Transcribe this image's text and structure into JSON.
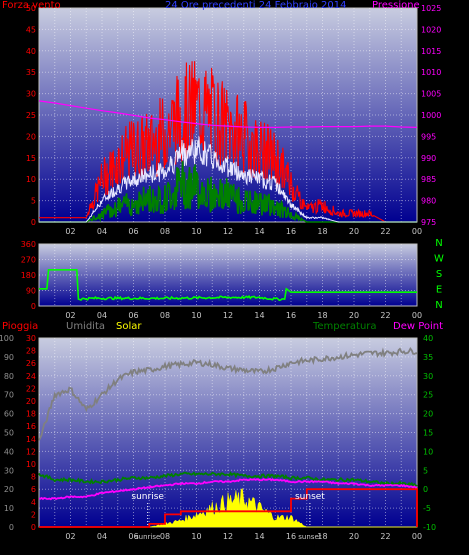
{
  "header": {
    "left": "Forza vento",
    "center": "24 Ore precedenti  24 Febbraio 2014",
    "right": "Pressione"
  },
  "colors": {
    "wind_gust": "#ff0000",
    "wind_avg": "#e8e8ff",
    "wind_low": "#008000",
    "pressure": "#ff00ff",
    "direction": "#00ff00",
    "rain": "#ff0000",
    "humidity": "#808080",
    "solar": "#ffff00",
    "temperature": "#008000",
    "dewpoint": "#ff00ff",
    "plot_top": "#c8cce0",
    "plot_bottom": "#000090"
  },
  "x_ticks": [
    "02",
    "04",
    "06",
    "08",
    "10",
    "12",
    "14",
    "16",
    "18",
    "20",
    "22",
    "00"
  ],
  "sun_labels": {
    "sunrise": "sunrise",
    "sunset": "sunset"
  },
  "chart_data": [
    {
      "type": "line",
      "name": "wind-pressure",
      "title": "24 Ore precedenti  24 Febbraio 2014",
      "ylabel": "Forza vento",
      "y2label": "Pressione",
      "ylim": [
        0,
        50
      ],
      "y2lim": [
        975,
        1025
      ],
      "yticks": [
        0,
        5,
        10,
        15,
        20,
        25,
        30,
        35,
        40,
        45,
        50
      ],
      "y2ticks": [
        975,
        980,
        985,
        990,
        995,
        1000,
        1005,
        1010,
        1015,
        1020,
        1025
      ],
      "x_hours": [
        0,
        1,
        2,
        3,
        4,
        5,
        6,
        7,
        8,
        9,
        10,
        11,
        12,
        13,
        14,
        15,
        16,
        17,
        18,
        19,
        20,
        21,
        22,
        23,
        24
      ],
      "series": [
        {
          "name": "Raffica",
          "values": [
            1,
            1,
            1,
            1,
            10,
            14,
            17,
            18,
            21,
            25,
            27,
            25,
            22,
            20,
            17,
            15,
            9,
            3,
            4,
            2,
            2,
            2,
            0,
            0,
            0
          ]
        },
        {
          "name": "Media",
          "values": [
            0,
            0,
            0,
            0,
            5,
            8,
            10,
            11,
            12,
            16,
            17,
            15,
            13,
            11,
            10,
            9,
            4,
            1,
            1,
            0,
            0,
            0,
            0,
            0,
            0
          ]
        },
        {
          "name": "Min",
          "values": [
            0,
            0,
            0,
            0,
            2,
            4,
            5,
            6,
            6,
            10,
            9,
            7,
            7,
            5,
            5,
            4,
            2,
            0,
            0,
            0,
            0,
            0,
            0,
            0,
            0
          ]
        },
        {
          "name": "Pressione",
          "values": [
            1003.3,
            1002.8,
            1002.2,
            1001.6,
            1001.0,
            1000.5,
            999.9,
            999.3,
            998.9,
            998.4,
            998.0,
            997.6,
            997.4,
            997.2,
            997.1,
            997.1,
            997.2,
            997.2,
            997.3,
            997.3,
            997.3,
            997.4,
            997.4,
            997.2,
            997.1
          ]
        }
      ]
    },
    {
      "type": "line",
      "name": "wind-direction",
      "ylim": [
        0,
        360
      ],
      "yticks": [
        0,
        90,
        180,
        270,
        360
      ],
      "compass": [
        "N",
        "W",
        "S",
        "E",
        "N"
      ],
      "points": [
        [
          0,
          100
        ],
        [
          0.5,
          100
        ],
        [
          0.6,
          210
        ],
        [
          2.4,
          210
        ],
        [
          2.5,
          40
        ],
        [
          3.5,
          45
        ],
        [
          8,
          45
        ],
        [
          12,
          50
        ],
        [
          14,
          50
        ],
        [
          15,
          40
        ],
        [
          15.6,
          40
        ],
        [
          15.7,
          100
        ],
        [
          16,
          80
        ],
        [
          24,
          80
        ]
      ]
    },
    {
      "type": "line",
      "name": "weather",
      "legend": [
        "Pioggia",
        "Umidita",
        "Solar",
        "Temperatura",
        "Dew Point"
      ],
      "y_left_hum": [
        0,
        10,
        20,
        30,
        40,
        50,
        60,
        70,
        80,
        90,
        100
      ],
      "y_left_rain": [
        0,
        2,
        4,
        6,
        8,
        10,
        12,
        14,
        16,
        18,
        20,
        22,
        24,
        26,
        28,
        30
      ],
      "y_right_temp": [
        -10,
        -5,
        0,
        5,
        10,
        15,
        20,
        25,
        30,
        35,
        40
      ],
      "sunrise_hour": 6.9,
      "sunset_hour": 17.2,
      "x_hours": [
        0,
        1,
        2,
        3,
        4,
        5,
        6,
        7,
        8,
        9,
        10,
        11,
        12,
        13,
        14,
        15,
        16,
        17,
        18,
        19,
        20,
        21,
        22,
        23,
        24
      ],
      "series": [
        {
          "name": "Umidita",
          "values": [
            45,
            70,
            73,
            62,
            70,
            78,
            82,
            83,
            85,
            86,
            87,
            86,
            84,
            83,
            82,
            84,
            87,
            88,
            89,
            90,
            91,
            92,
            92,
            93,
            93
          ]
        },
        {
          "name": "Temperatura",
          "values": [
            4,
            2.5,
            2.5,
            2,
            2,
            2.5,
            3,
            3,
            3.5,
            4,
            4,
            4,
            4,
            3.5,
            3.5,
            3.5,
            3,
            3,
            2.5,
            2.5,
            2.5,
            2,
            1.5,
            1.5,
            1
          ]
        },
        {
          "name": "Dew Point",
          "values": [
            -2.5,
            -2.5,
            -2,
            -2,
            -1,
            -0.5,
            0,
            0.5,
            1,
            1.5,
            1.5,
            2,
            2,
            2.5,
            2.5,
            2.5,
            2,
            2,
            2,
            1.5,
            1.5,
            1,
            1,
            1,
            0.5
          ]
        },
        {
          "name": "Pioggia",
          "values": [
            0,
            0,
            0,
            0,
            0,
            0,
            0,
            0.5,
            2,
            2.5,
            2.5,
            2.5,
            2.5,
            2.5,
            2.5,
            2.5,
            4.5,
            6,
            6,
            6,
            6,
            6,
            6,
            6,
            6
          ]
        },
        {
          "name": "Solar",
          "values": [
            0,
            0,
            0,
            0,
            0,
            0,
            0,
            0,
            0.5,
            1,
            2,
            3,
            4,
            4.5,
            3,
            1.5,
            1.5,
            0,
            0,
            0,
            0,
            0,
            0,
            0,
            0
          ]
        }
      ]
    }
  ]
}
